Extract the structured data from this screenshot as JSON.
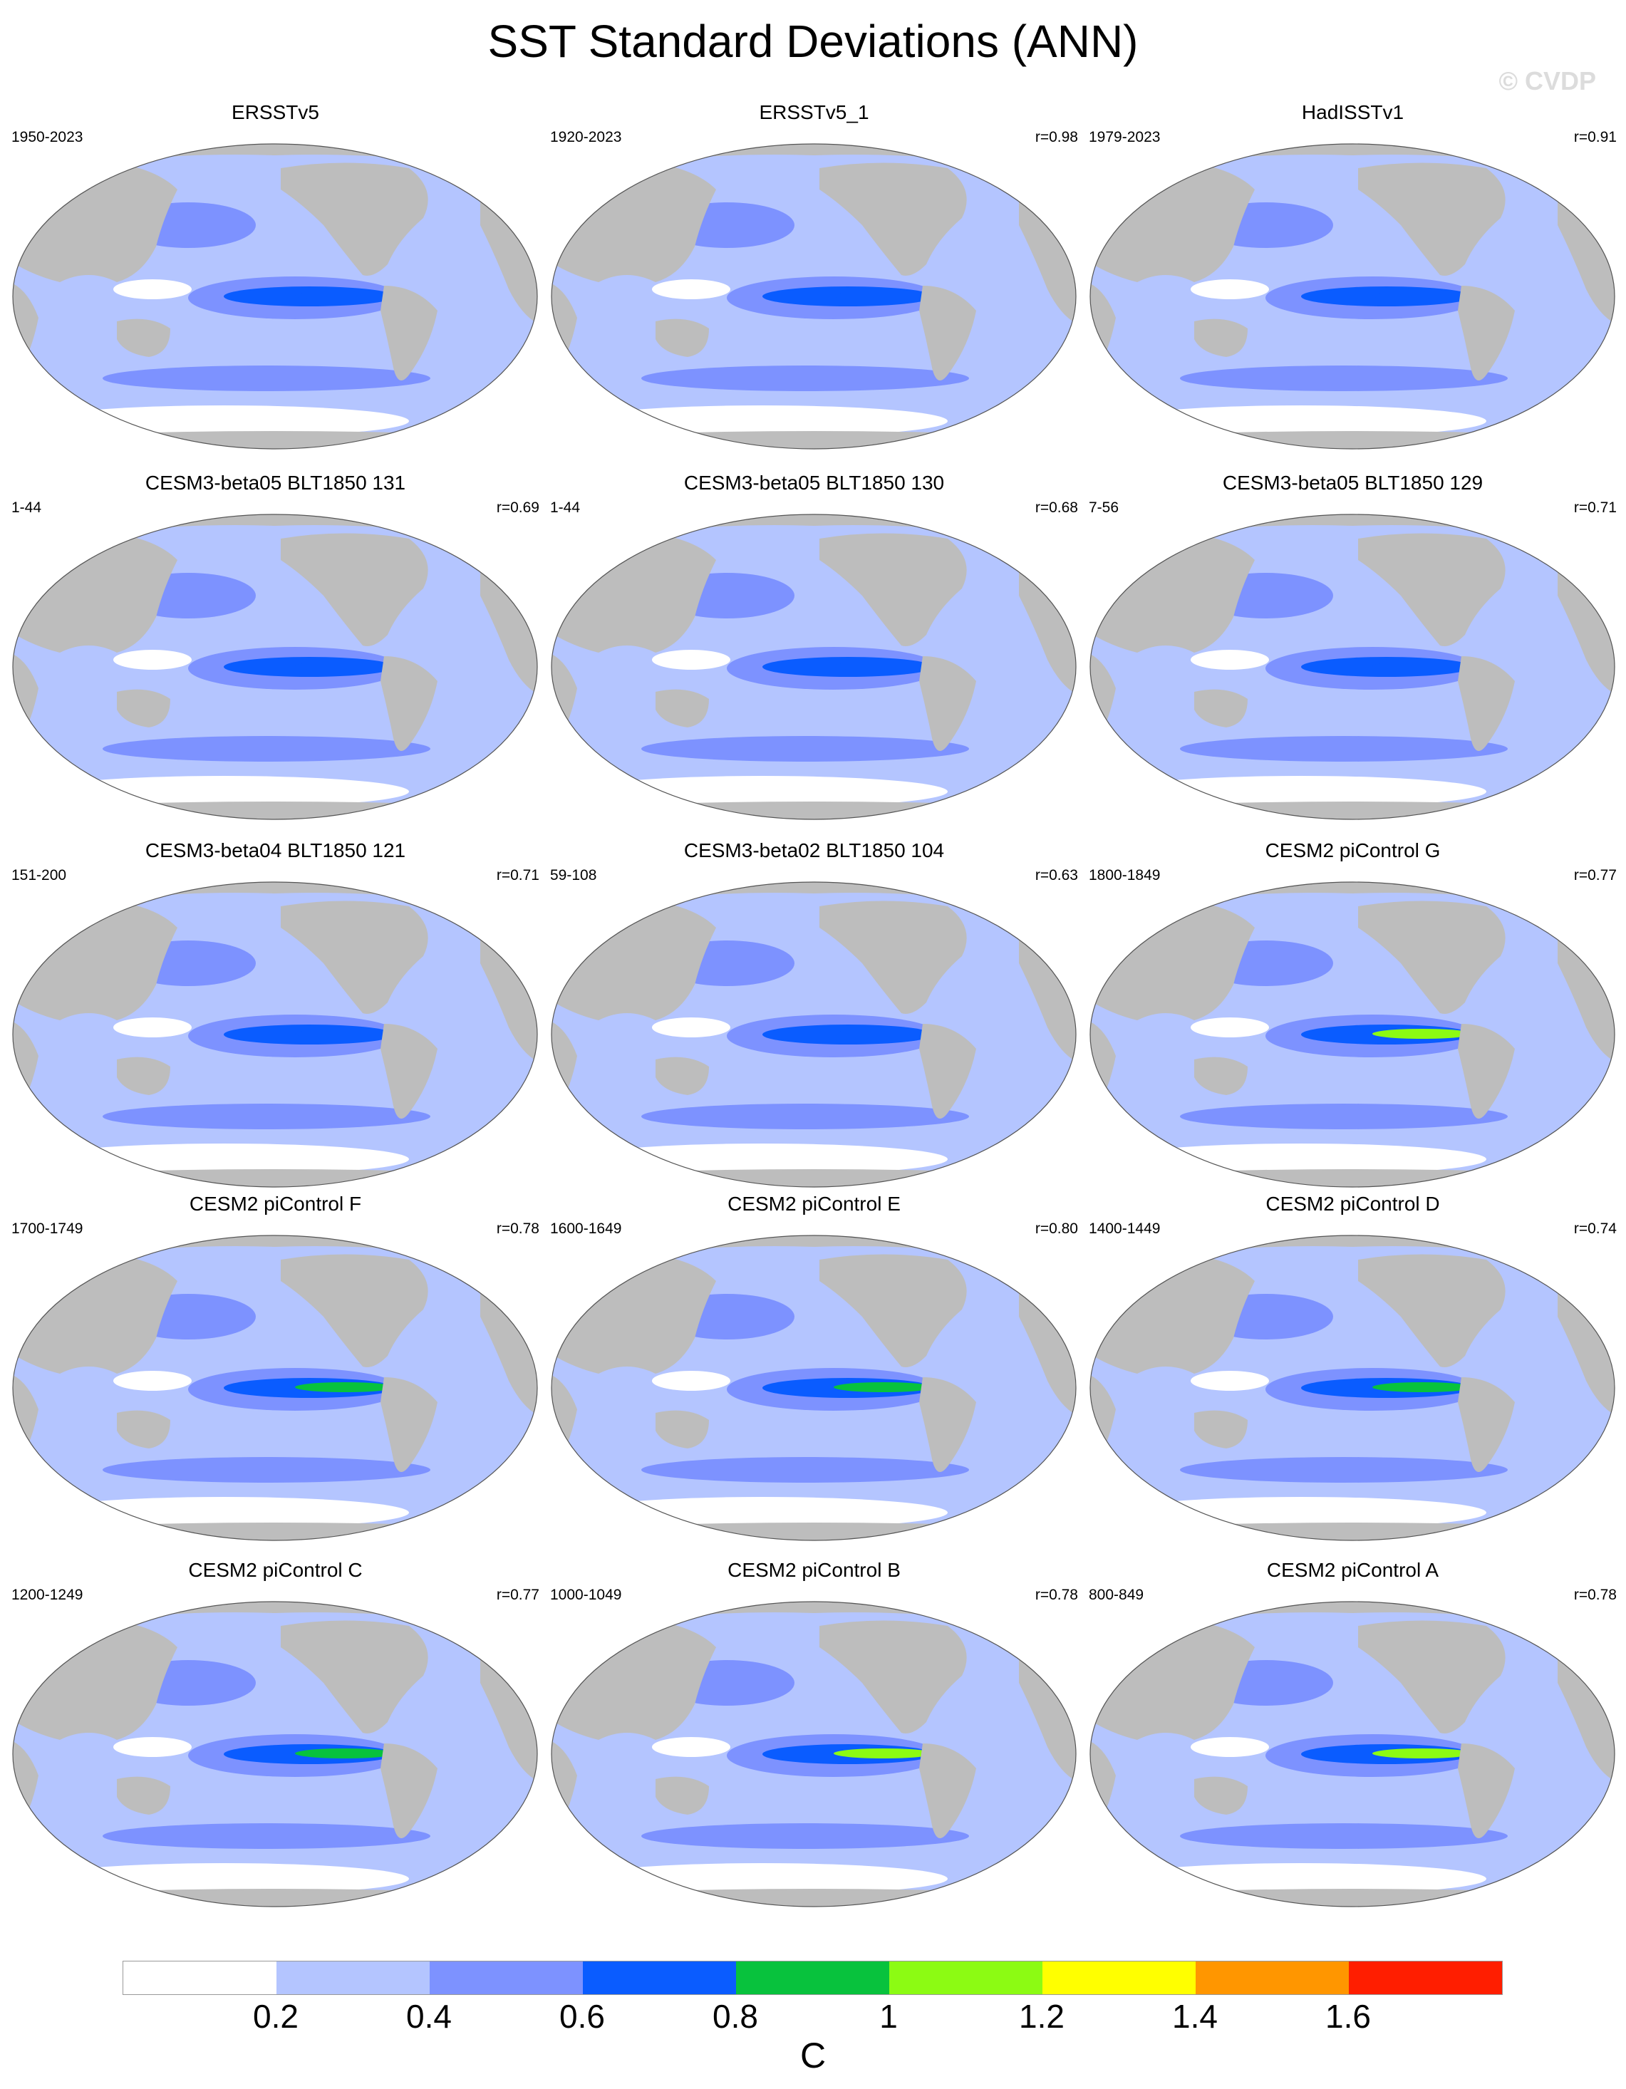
{
  "title": "SST Standard Deviations (ANN)",
  "watermark": "© CVDP",
  "panels": [
    {
      "name": "ERSSTv5",
      "period": "1950-2023",
      "r": "",
      "hotspot": 0.7
    },
    {
      "name": "ERSSTv5_1",
      "period": "1920-2023",
      "r": "r=0.98",
      "hotspot": 0.7
    },
    {
      "name": "HadISSTv1",
      "period": "1979-2023",
      "r": "r=0.91",
      "hotspot": 0.7
    },
    {
      "name": "CESM3-beta05 BLT1850 131",
      "period": "1-44",
      "r": "r=0.69",
      "hotspot": 0.7
    },
    {
      "name": "CESM3-beta05 BLT1850 130",
      "period": "1-44",
      "r": "r=0.68",
      "hotspot": 0.7
    },
    {
      "name": "CESM3-beta05 BLT1850 129",
      "period": "7-56",
      "r": "r=0.71",
      "hotspot": 0.7
    },
    {
      "name": "CESM3-beta04 BLT1850 121",
      "period": "151-200",
      "r": "r=0.71",
      "hotspot": 0.7
    },
    {
      "name": "CESM3-beta02 BLT1850 104",
      "period": "59-108",
      "r": "r=0.63",
      "hotspot": 0.6
    },
    {
      "name": "CESM2 piControl G",
      "period": "1800-1849",
      "r": "r=0.77",
      "hotspot": 1.1
    },
    {
      "name": "CESM2 piControl F",
      "period": "1700-1749",
      "r": "r=0.78",
      "hotspot": 0.9
    },
    {
      "name": "CESM2 piControl E",
      "period": "1600-1649",
      "r": "r=0.80",
      "hotspot": 0.9
    },
    {
      "name": "CESM2 piControl D",
      "period": "1400-1449",
      "r": "r=0.74",
      "hotspot": 0.9
    },
    {
      "name": "CESM2 piControl C",
      "period": "1200-1249",
      "r": "r=0.77",
      "hotspot": 0.9
    },
    {
      "name": "CESM2 piControl B",
      "period": "1000-1049",
      "r": "r=0.78",
      "hotspot": 1.0
    },
    {
      "name": "CESM2 piControl A",
      "period": "800-849",
      "r": "r=0.78",
      "hotspot": 1.0
    }
  ],
  "colorbar": {
    "unit": "C",
    "labels": [
      "0.2",
      "0.4",
      "0.6",
      "0.8",
      "1",
      "1.2",
      "1.4",
      "1.6"
    ],
    "colors": [
      "#ffffff",
      "#b4c5ff",
      "#7d92ff",
      "#0a5cff",
      "#08c23d",
      "#8cfb13",
      "#ffff00",
      "#ff9600",
      "#ff1e00"
    ]
  },
  "map_colors": {
    "land": "#bdbdbd",
    "ocean_low": "#b4c5ff",
    "ocean_mid": "#7d92ff",
    "ocean_high": "#0a5cff",
    "peak_green": "#08c23d",
    "peak_lime": "#8cfb13"
  }
}
